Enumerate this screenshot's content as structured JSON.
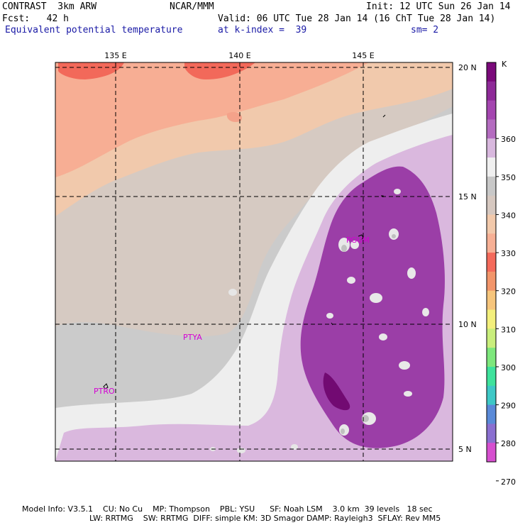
{
  "header": {
    "line1_left": "CONTRAST  3km ARW",
    "line1_mid": "NCAR/MMM",
    "line1_right": "Init: 12 UTC Sun 26 Jan 14",
    "line2_left": "Fcst:   42 h",
    "line2_right": "Valid: 06 UTC Tue 28 Jan 14 (16 ChT Tue 28 Jan 14)",
    "line3_left": "Equivalent potential temperature",
    "line3_mid": "at k-index =  39",
    "line3_right": "sm= 2"
  },
  "map": {
    "lon_labels": [
      "135 E",
      "140 E",
      "145 E"
    ],
    "lat_labels": [
      "20 N",
      "15 N",
      "10 N",
      "5 N"
    ],
    "stations": [
      "PGUM",
      "PTYA",
      "PTRO"
    ]
  },
  "colorbar": {
    "unit": "K",
    "labels": [
      "360",
      "350",
      "340",
      "330",
      "320",
      "310",
      "300",
      "290",
      "280",
      "270"
    ],
    "colors": [
      "#7a0a7a",
      "#8e2a98",
      "#a446b0",
      "#b46cc0",
      "#d8b8de",
      "#f0f0f0",
      "#c8c8c8",
      "#d6c8c0",
      "#f2c9ab",
      "#f7b095",
      "#f46a5b",
      "#f2956a",
      "#f6c57c",
      "#f3ef7c",
      "#c9ee7c",
      "#7de77c",
      "#3ee29c",
      "#3ec8c6",
      "#5a8ad8",
      "#8a6fd0",
      "#d64fcf"
    ]
  },
  "footer": {
    "line1": "Model Info: V3.5.1    CU: No Cu    MP: Thompson    PBL: YSU      SF: Noah LSM    3.0 km  39 levels   18 sec",
    "line2": "LW: RRTMG    SW: RRTMG  DIFF: simple KM: 3D Smagor DAMP: Rayleigh3  SFLAY: Rev MM5"
  }
}
